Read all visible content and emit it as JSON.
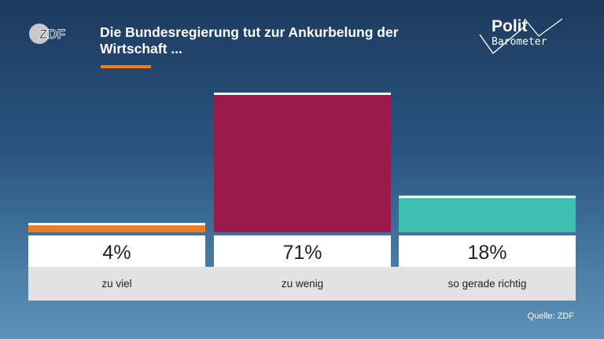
{
  "header": {
    "logo_text": "ZDF",
    "title": "Die Bundesregierung tut zur Ankurbelung der Wirtschaft ...",
    "brand_top": "Polit",
    "brand_bottom": "Barometer"
  },
  "footer": {
    "source": "Quelle: ZDF"
  },
  "chart_data": {
    "type": "bar",
    "title": "Die Bundesregierung tut zur Ankurbelung der Wirtschaft ...",
    "categories": [
      "zu viel",
      "zu wenig",
      "so gerade richtig"
    ],
    "values": [
      4,
      71,
      18
    ],
    "value_labels": [
      "4%",
      "71%",
      "18%"
    ],
    "colors": [
      "#f07d1a",
      "#9b1b48",
      "#3cbfae"
    ],
    "ylim": [
      0,
      71
    ],
    "grid": false,
    "legend": "none"
  }
}
